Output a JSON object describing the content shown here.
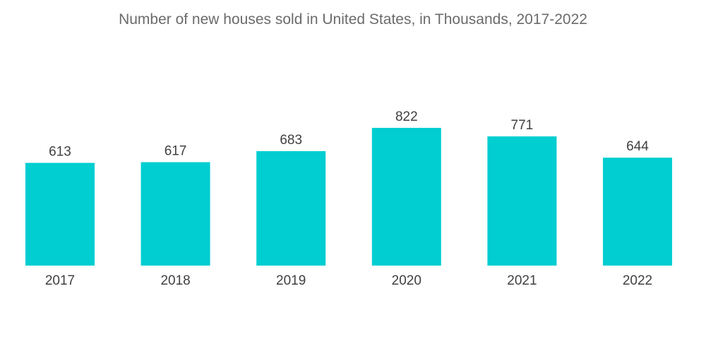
{
  "chart_data": {
    "type": "bar",
    "title": "Number of new houses sold in United States, in Thousands, 2017-2022",
    "categories": [
      "2017",
      "2018",
      "2019",
      "2020",
      "2021",
      "2022"
    ],
    "values": [
      613,
      617,
      683,
      822,
      771,
      644
    ],
    "xlabel": "",
    "ylabel": "",
    "ylim": [
      0,
      822
    ],
    "grid": false,
    "legend": "none",
    "bar_color": "#00CED1"
  }
}
